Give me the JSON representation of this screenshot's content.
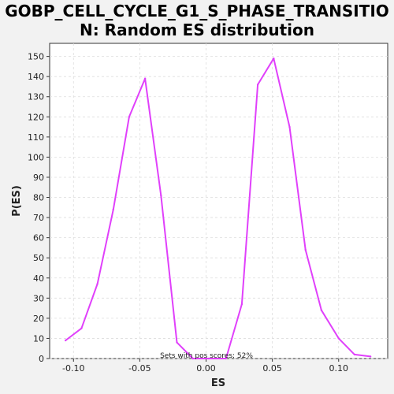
{
  "chart_data": {
    "type": "line",
    "title_line1": "GOBP_CELL_CYCLE_G1_S_PHASE_TRANSITIO",
    "title_line2": "N: Random ES distribution",
    "xlabel": "ES",
    "ylabel": "P(ES)",
    "xlim": [
      -0.118,
      0.137
    ],
    "ylim": [
      0,
      156.5
    ],
    "xticks": [
      -0.1,
      -0.05,
      0.0,
      0.05,
      0.1
    ],
    "xtick_labels": [
      "-0.10",
      "-0.05",
      "0.00",
      "0.05",
      "0.10"
    ],
    "yticks": [
      0,
      10,
      20,
      30,
      40,
      50,
      60,
      70,
      80,
      90,
      100,
      110,
      120,
      130,
      140,
      150
    ],
    "ytick_labels": [
      "0",
      "10",
      "20",
      "30",
      "40",
      "50",
      "60",
      "70",
      "80",
      "90",
      "100",
      "110",
      "120",
      "130",
      "140",
      "150"
    ],
    "grid": true,
    "line_color": "#e040fb",
    "annotation": "Sets with pos scores: 52%",
    "series": [
      {
        "x": [
          -0.106,
          -0.094,
          -0.082,
          -0.07,
          -0.058,
          -0.046,
          -0.034,
          -0.022,
          -0.01,
          0.002,
          0.015,
          0.027,
          0.039,
          0.051,
          0.063,
          0.075,
          0.087,
          0.1,
          0.112,
          0.124
        ],
        "y": [
          9,
          15,
          37,
          74,
          120,
          139,
          81,
          8,
          0,
          0,
          0,
          27,
          136,
          149,
          115,
          54,
          24,
          10,
          2,
          1
        ]
      }
    ]
  }
}
